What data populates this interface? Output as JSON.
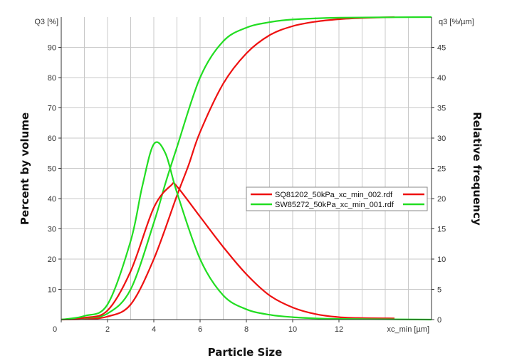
{
  "chart_data": {
    "type": "line",
    "xlabel": "Particle Size",
    "ylabel": "Percent by volume",
    "y2label": "Relative frequency",
    "x_unit_label": "xc_min [µm]",
    "y_unit_label": "Q3 [%]",
    "y2_unit_label": "q3 [%/µm]",
    "xlim": [
      0,
      16
    ],
    "ylim": [
      0,
      100
    ],
    "y2lim": [
      0,
      50
    ],
    "x_ticks": [
      "0",
      "2",
      "4",
      "6",
      "8",
      "10",
      "12"
    ],
    "y_ticks": [
      "10",
      "20",
      "30",
      "40",
      "50",
      "60",
      "70",
      "80",
      "90"
    ],
    "y2_ticks": [
      "0",
      "5",
      "10",
      "15",
      "20",
      "25",
      "30",
      "35",
      "40",
      "45"
    ],
    "grid": true,
    "legend_position": "center-right",
    "series": [
      {
        "name": "SQ81202_50kPa_xc_min_002.rdf",
        "color": "#ee1111",
        "axis": "left",
        "kind": "cumulative Q3",
        "x": [
          0,
          1,
          2,
          3,
          4,
          5,
          5.5,
          6,
          7,
          8,
          9,
          10,
          11,
          12,
          13,
          14.4
        ],
        "y": [
          0,
          0.2,
          1,
          5,
          20,
          41,
          51,
          62,
          78,
          88,
          94,
          97,
          98.5,
          99.3,
          99.7,
          100
        ]
      },
      {
        "name": "SW85272_50kPa_xc_min_001.rdf",
        "color": "#22dd22",
        "axis": "left",
        "kind": "cumulative Q3",
        "x": [
          0,
          1,
          2,
          3,
          4,
          4.5,
          5,
          6,
          7,
          8,
          9,
          10,
          12,
          16
        ],
        "y": [
          0,
          0.5,
          2,
          10,
          32,
          45,
          57,
          80,
          92,
          96.5,
          98.3,
          99.2,
          99.8,
          100
        ]
      },
      {
        "name": "SQ81202_50kPa_xc_min_002.rdf",
        "color": "#ee1111",
        "axis": "right",
        "kind": "density q3",
        "x": [
          0,
          1,
          2,
          3,
          4,
          4.75,
          5,
          6,
          7,
          8,
          9,
          10,
          11,
          12,
          13,
          14.4
        ],
        "y": [
          0,
          0.3,
          1.5,
          8,
          18.5,
          22.2,
          22,
          17,
          12,
          7.5,
          4,
          2,
          0.9,
          0.4,
          0.25,
          0.2
        ]
      },
      {
        "name": "SW85272_50kPa_xc_min_001.rdf",
        "color": "#22dd22",
        "axis": "right",
        "kind": "density q3",
        "x": [
          0,
          1,
          2,
          3,
          3.5,
          4,
          4.5,
          5,
          6,
          7,
          8,
          9,
          10,
          11,
          12,
          14,
          16
        ],
        "y": [
          0,
          0.6,
          2.5,
          13,
          22,
          29,
          27.5,
          21,
          10,
          4,
          1.7,
          0.8,
          0.4,
          0.2,
          0.1,
          0.05,
          0
        ]
      }
    ],
    "legend": [
      "SQ81202_50kPa_xc_min_002.rdf",
      "SW85272_50kPa_xc_min_001.rdf"
    ]
  }
}
